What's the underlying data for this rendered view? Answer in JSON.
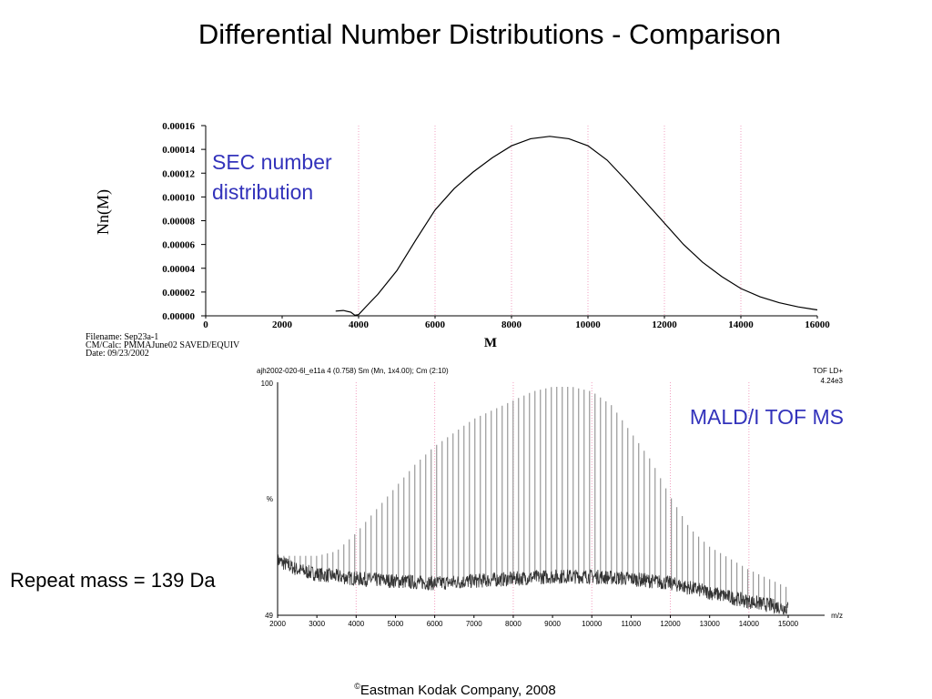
{
  "slide": {
    "title": "Differential Number Distributions - Comparison",
    "repeat_label": "Repeat mass = 139 Da",
    "footer_symbol": "©",
    "footer": "Eastman Kodak Company, 2008"
  },
  "colors": {
    "accent": "#3333bb",
    "grid": "#f2a0c0",
    "ink": "#000000"
  },
  "chart_data": [
    {
      "type": "line",
      "annotation": [
        "SEC number",
        "distribution"
      ],
      "ylabel": "Nn(M)",
      "xlabel": "M",
      "xlim": [
        0,
        16000
      ],
      "ylim": [
        0,
        0.00016
      ],
      "x_ticks": [
        "0",
        "2000",
        "4000",
        "6000",
        "8000",
        "10000",
        "12000",
        "14000",
        "16000"
      ],
      "y_ticks": [
        "0.00000",
        "0.00002",
        "0.00004",
        "0.00006",
        "0.00008",
        "0.00010",
        "0.00012",
        "0.00014",
        "0.00016"
      ],
      "vgrid_x": [
        4000,
        6000,
        8000,
        10000,
        12000,
        14000
      ],
      "meta": [
        "Filename: Sep23a-1",
        "CM/Calc: PMMAJune02 SAVED/EQUIV",
        "Date: 09/23/2002"
      ],
      "series": [
        {
          "x": [
            3400,
            3600,
            3800,
            3900,
            4000,
            4200,
            4500,
            5000,
            5500,
            6000,
            6500,
            7000,
            7500,
            8000,
            8500,
            9000,
            9500,
            10000,
            10500,
            11000,
            11500,
            12000,
            12500,
            13000,
            13500,
            14000,
            14500,
            15000,
            15500,
            16000
          ],
          "y": [
            4e-06,
            4.5e-06,
            3e-06,
            5e-07,
            1e-06,
            8e-06,
            1.8e-05,
            3.8e-05,
            6.4e-05,
            8.9e-05,
            0.000107,
            0.000121,
            0.000133,
            0.000143,
            0.000149,
            0.000151,
            0.000149,
            0.000143,
            0.000131,
            0.000114,
            9.6e-05,
            7.8e-05,
            6e-05,
            4.5e-05,
            3.3e-05,
            2.3e-05,
            1.6e-05,
            1.1e-05,
            7.5e-06,
            5e-06
          ]
        }
      ]
    },
    {
      "type": "bar",
      "annotation": "MALD/I TOF MS",
      "header_left": "ajh2002-020-6l_e11a  4 (0.758) Sm (Mn, 1x4.00); Cm (2:10)",
      "header_right": [
        "TOF LD+",
        "4.24e3"
      ],
      "xlabel": "m/z",
      "xlim": [
        2000,
        15000
      ],
      "ylim": [
        49,
        100
      ],
      "x_ticks": [
        "2000",
        "3000",
        "4000",
        "5000",
        "6000",
        "7000",
        "8000",
        "9000",
        "10000",
        "11000",
        "12000",
        "13000",
        "14000",
        "15000"
      ],
      "y_ticks": [
        "100",
        "%",
        "49"
      ],
      "vgrid_x": [
        4000,
        6000,
        8000,
        10000,
        12000,
        14000
      ],
      "peak_spacing": 139,
      "envelope": {
        "x": [
          2000,
          3000,
          3500,
          4000,
          4500,
          5000,
          5500,
          6000,
          6500,
          7000,
          7500,
          8000,
          8500,
          9000,
          9500,
          10000,
          10500,
          11000,
          11500,
          12000,
          12500,
          13000,
          14000,
          15000
        ],
        "y": [
          62,
          62,
          63,
          67,
          72,
          77,
          82,
          86,
          89,
          92,
          94,
          96,
          98,
          99,
          99,
          98,
          95,
          89,
          83,
          75,
          68,
          64,
          59,
          55
        ]
      },
      "baseline": {
        "x": [
          2000,
          2500,
          3000,
          4000,
          5000,
          6000,
          7000,
          8000,
          9000,
          10000,
          11000,
          12000,
          13000,
          14000,
          15000
        ],
        "y": [
          61,
          59,
          58,
          57,
          56.5,
          56,
          56.5,
          57,
          57.5,
          57.5,
          57,
          56,
          54,
          52,
          50.5
        ]
      }
    }
  ]
}
